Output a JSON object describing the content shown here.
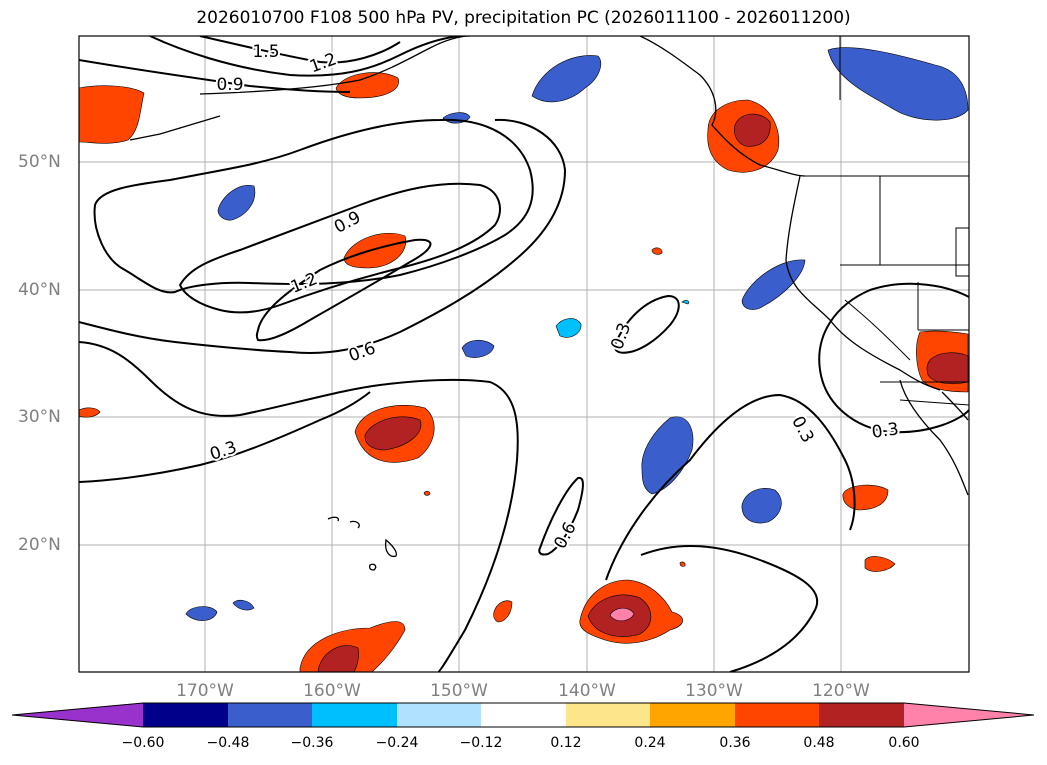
{
  "title": "2026010700 F108 500 hPa PV, precipitation PC (2026011100 - 2026011200)",
  "lat_labels": [
    "50°N",
    "40°N",
    "30°N",
    "20°N"
  ],
  "lon_labels": [
    "170°W",
    "160°W",
    "150°W",
    "140°W",
    "130°W",
    "120°W"
  ],
  "contour_labels": [
    "1.5",
    "1.2",
    "0.9",
    "0.9",
    "1.2",
    "0.6",
    "0.3",
    "0.6",
    "0.3",
    "0.3",
    "0.3"
  ],
  "colorbar": {
    "ticks": [
      "−0.60",
      "−0.48",
      "−0.36",
      "−0.24",
      "−0.12",
      "0.12",
      "0.24",
      "0.36",
      "0.48",
      "0.60"
    ],
    "colors": [
      "#9932cc",
      "#00008b",
      "#3a5fcd",
      "#00bfff",
      "#b0e2ff",
      "#ffffff",
      "#fde68a",
      "#ffa500",
      "#ff4500",
      "#b22222",
      "#ff82ab"
    ]
  }
}
